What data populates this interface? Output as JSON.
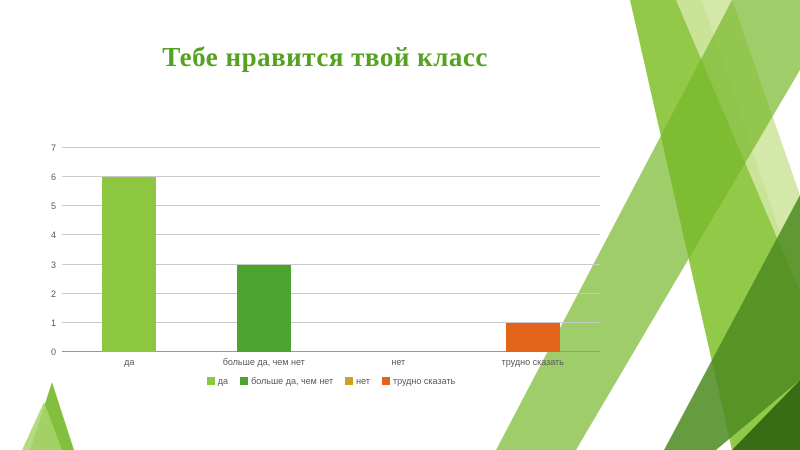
{
  "slide": {
    "title": "Тебе нравится твой класс",
    "title_color": "#55a221"
  },
  "chart_data": {
    "type": "bar",
    "title": "Тебе нравится твой класс",
    "categories": [
      "да",
      "больше да, чем нет",
      "нет",
      "трудно сказать"
    ],
    "values": [
      6,
      3,
      0,
      1
    ],
    "bar_colors": [
      "#8dc63f",
      "#4ca32f",
      "#c9a227",
      "#e2641b"
    ],
    "xlabel": "",
    "ylabel": "",
    "ylim": [
      0,
      7
    ],
    "yticks": [
      0,
      1,
      2,
      3,
      4,
      5,
      6,
      7
    ],
    "grid": true,
    "legend_position": "bottom",
    "legend": [
      {
        "label": "да",
        "color": "#8dc63f"
      },
      {
        "label": "больше да, чем нет",
        "color": "#4ca32f"
      },
      {
        "label": "нет",
        "color": "#c9a227"
      },
      {
        "label": "трудно сказать",
        "color": "#e2641b"
      }
    ]
  }
}
